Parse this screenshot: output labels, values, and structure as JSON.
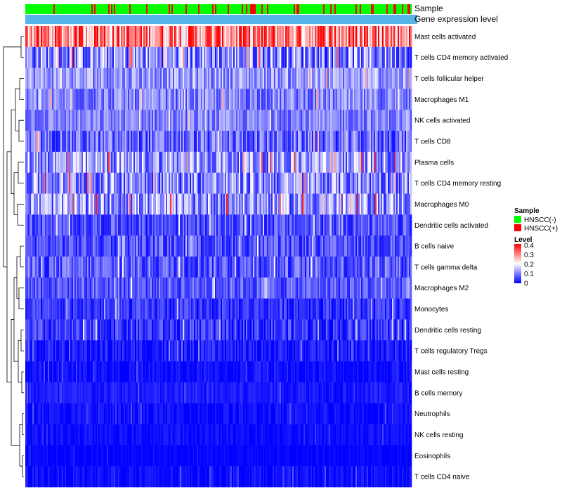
{
  "chart_data": {
    "type": "heatmap",
    "title": "",
    "columns_count": 275,
    "annotations": [
      {
        "name": "Sample"
      },
      {
        "name": "Gene expression level"
      }
    ],
    "rows": [
      {
        "label": "Mast cells activated",
        "mean": 0.3,
        "spread": 0.12
      },
      {
        "label": "T cells CD4 memory activated",
        "mean": 0.11,
        "spread": 0.1
      },
      {
        "label": "T cells follicular helper",
        "mean": 0.12,
        "spread": 0.06
      },
      {
        "label": "Macrophages M1",
        "mean": 0.1,
        "spread": 0.06
      },
      {
        "label": "NK cells activated",
        "mean": 0.1,
        "spread": 0.05
      },
      {
        "label": "T cells CD8",
        "mean": 0.08,
        "spread": 0.07
      },
      {
        "label": "Plasma cells",
        "mean": 0.12,
        "spread": 0.09
      },
      {
        "label": "T cells CD4 memory resting",
        "mean": 0.11,
        "spread": 0.09
      },
      {
        "label": "Macrophages M0",
        "mean": 0.12,
        "spread": 0.09
      },
      {
        "label": "Dendritic cells activated",
        "mean": 0.06,
        "spread": 0.05
      },
      {
        "label": "B cells naive",
        "mean": 0.06,
        "spread": 0.05
      },
      {
        "label": "T cells gamma delta",
        "mean": 0.07,
        "spread": 0.06
      },
      {
        "label": "Macrophages M2",
        "mean": 0.07,
        "spread": 0.05
      },
      {
        "label": "Monocytes",
        "mean": 0.04,
        "spread": 0.04
      },
      {
        "label": "Dendritic cells resting",
        "mean": 0.04,
        "spread": 0.05
      },
      {
        "label": "T cells regulatory  Tregs",
        "mean": 0.02,
        "spread": 0.03
      },
      {
        "label": "Mast cells resting",
        "mean": 0.01,
        "spread": 0.02
      },
      {
        "label": "B cells memory",
        "mean": 0.02,
        "spread": 0.02
      },
      {
        "label": "Neutrophils",
        "mean": 0.01,
        "spread": 0.02
      },
      {
        "label": "NK cells resting",
        "mean": 0.01,
        "spread": 0.015
      },
      {
        "label": "Eosinophils",
        "mean": 0.003,
        "spread": 0.01
      },
      {
        "label": "T cells CD4 naive",
        "mean": 0.01,
        "spread": 0.02
      }
    ],
    "sample_groups": [
      {
        "name": "HNSCC(-)",
        "color": "#00ff00"
      },
      {
        "name": "HNSCC(+)",
        "color": "#ff0000"
      }
    ],
    "gene_expression_level_color": "#56b4e9",
    "color_scale": {
      "title": "Level",
      "min": 0,
      "max": 0.4,
      "ticks": [
        "0.4",
        "0.3",
        "0.2",
        "0.1",
        "0"
      ],
      "low_color": "#0000ff",
      "mid_color": "#ffffff",
      "high_color": "#ff0000",
      "mid_value": 0.2
    }
  },
  "legend": {
    "sample_title": "Sample",
    "level_title": "Level"
  }
}
